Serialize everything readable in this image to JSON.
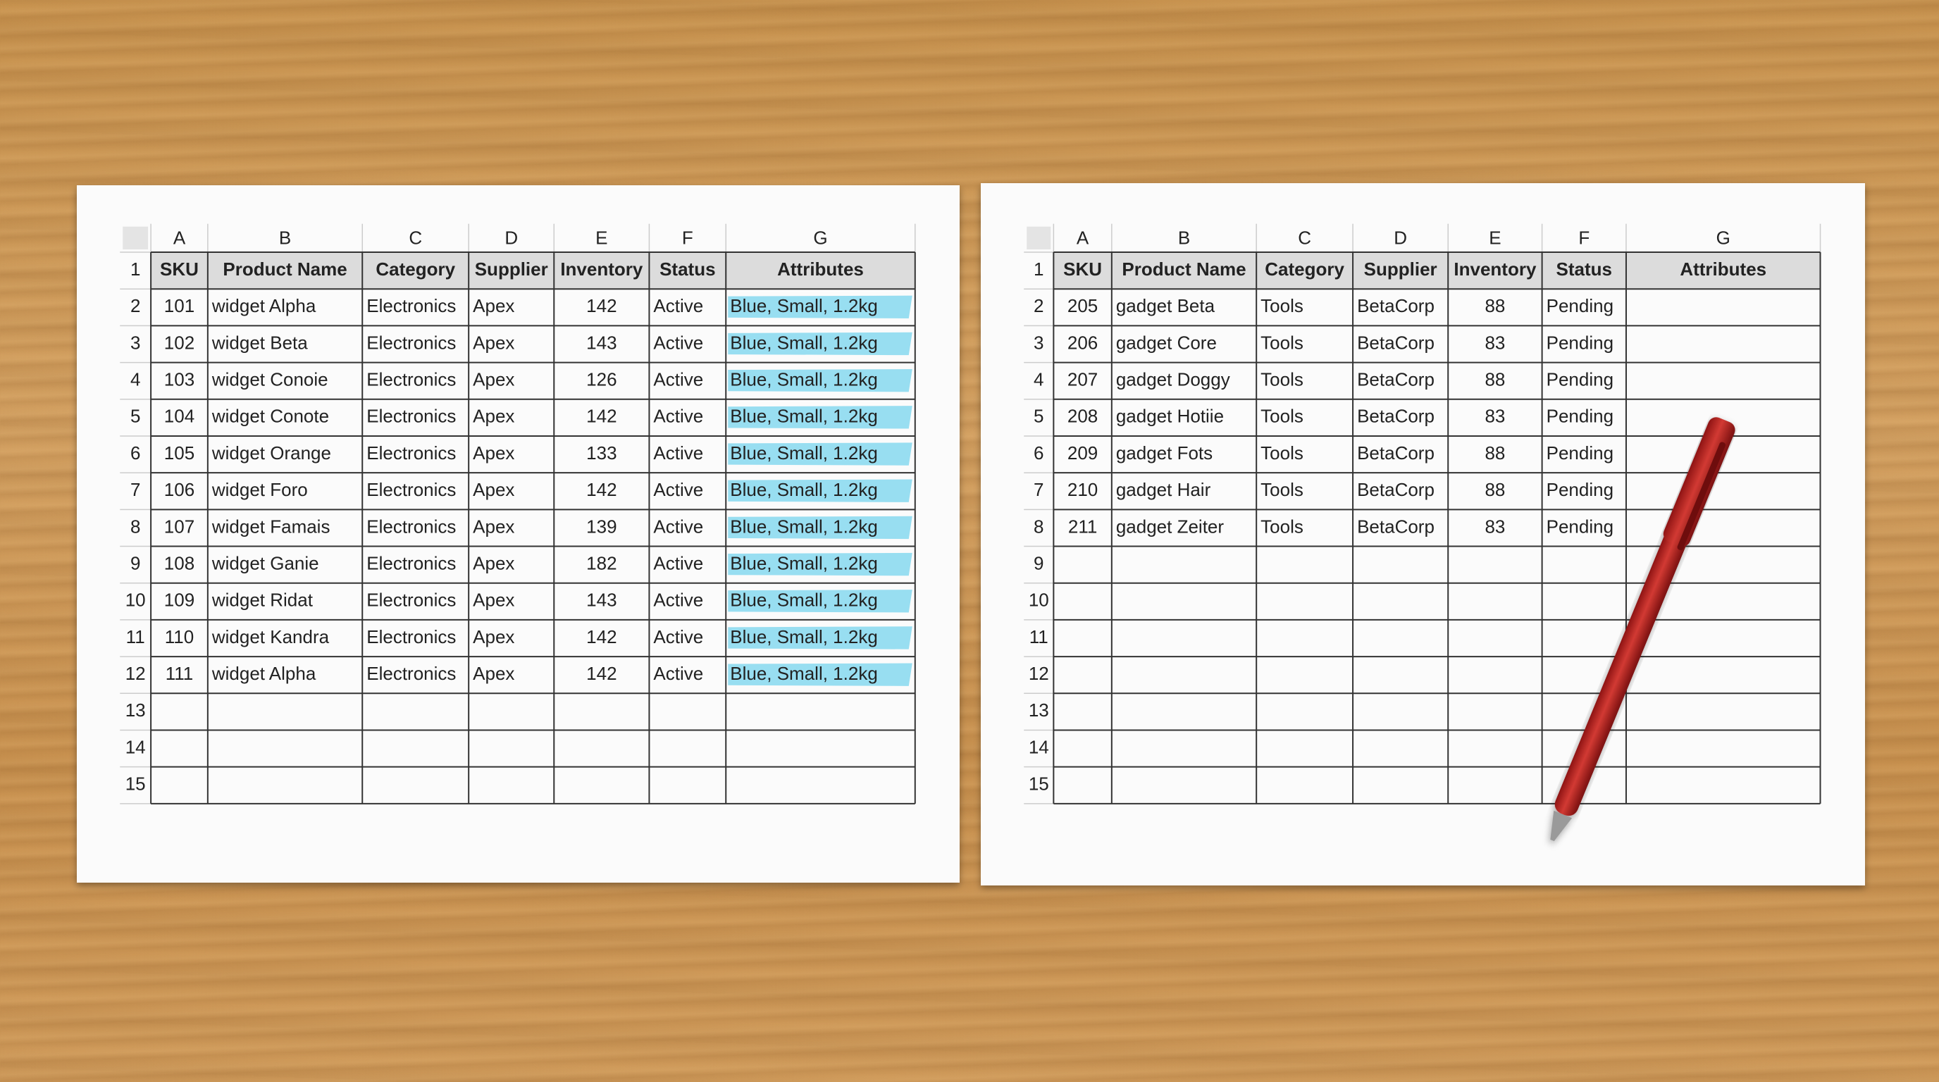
{
  "sheets": [
    {
      "columns": [
        "A",
        "B",
        "C",
        "D",
        "E",
        "F",
        "G"
      ],
      "row_numbers": [
        "1",
        "2",
        "3",
        "4",
        "5",
        "6",
        "7",
        "8",
        "9",
        "10",
        "11",
        "12",
        "13",
        "14",
        "15"
      ],
      "header": [
        "SKU",
        "Product Name",
        "Category",
        "Supplier",
        "Inventory",
        "Status",
        "Attributes"
      ],
      "highlight": "#86d8ee",
      "rows": [
        [
          101,
          "widget Alpha",
          "Electronics",
          "Apex",
          142,
          "Active",
          "Blue, Small, 1.2kg"
        ],
        [
          102,
          "widget Beta",
          "Electronics",
          "Apex",
          143,
          "Active",
          "Blue, Small, 1.2kg"
        ],
        [
          103,
          "widget Conoie",
          "Electronics",
          "Apex",
          126,
          "Active",
          "Blue, Small, 1.2kg"
        ],
        [
          104,
          "widget Conote",
          "Electronics",
          "Apex",
          142,
          "Active",
          "Blue, Small, 1.2kg"
        ],
        [
          105,
          "widget Orange",
          "Electronics",
          "Apex",
          133,
          "Active",
          "Blue, Small, 1.2kg"
        ],
        [
          106,
          "widget Foro",
          "Electronics",
          "Apex",
          142,
          "Active",
          "Blue, Small, 1.2kg"
        ],
        [
          107,
          "widget Famais",
          "Electronics",
          "Apex",
          139,
          "Active",
          "Blue, Small, 1.2kg"
        ],
        [
          108,
          "widget Ganie",
          "Electronics",
          "Apex",
          182,
          "Active",
          "Blue, Small, 1.2kg"
        ],
        [
          109,
          "widget Ridat",
          "Electronics",
          "Apex",
          143,
          "Active",
          "Blue, Small, 1.2kg"
        ],
        [
          110,
          "widget Kandra",
          "Electronics",
          "Apex",
          142,
          "Active",
          "Blue, Small, 1.2kg"
        ],
        [
          111,
          "widget Alpha",
          "Electronics",
          "Apex",
          142,
          "Active",
          "Blue, Small, 1.2kg"
        ]
      ]
    },
    {
      "columns": [
        "A",
        "B",
        "C",
        "D",
        "E",
        "F",
        "G"
      ],
      "row_numbers": [
        "1",
        "2",
        "3",
        "4",
        "5",
        "6",
        "7",
        "8",
        "9",
        "10",
        "11",
        "12",
        "13",
        "14",
        "15"
      ],
      "header": [
        "SKU",
        "Product Name",
        "Category",
        "Supplier",
        "Inventory",
        "Status",
        "Attributes"
      ],
      "rows": [
        [
          205,
          "gadget Beta",
          "Tools",
          "BetaCorp",
          88,
          "Pending"
        ],
        [
          206,
          "gadget Core",
          "Tools",
          "BetaCorp",
          83,
          "Pending"
        ],
        [
          207,
          "gadget Doggy",
          "Tools",
          "BetaCorp",
          88,
          "Pending"
        ],
        [
          208,
          "gadget Hotiie",
          "Tools",
          "BetaCorp",
          83,
          "Pending"
        ],
        [
          209,
          "gadget Fots",
          "Tools",
          "BetaCorp",
          88,
          "Pending"
        ],
        [
          210,
          "gadget Hair",
          "Tools",
          "BetaCorp",
          88,
          "Pending"
        ],
        [
          211,
          "gadget Zeiter",
          "Tools",
          "BetaCorp",
          83,
          "Pending"
        ]
      ]
    }
  ]
}
